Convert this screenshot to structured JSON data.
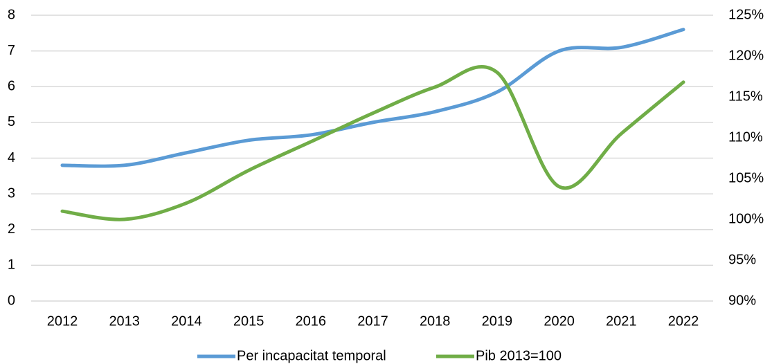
{
  "chart_data": {
    "type": "line",
    "categories": [
      "2012",
      "2013",
      "2014",
      "2015",
      "2016",
      "2017",
      "2018",
      "2019",
      "2020",
      "2021",
      "2022"
    ],
    "series": [
      {
        "name": "Per incapacitat temporal",
        "color": "#5b9bd5",
        "values": [
          3.8,
          3.8,
          4.15,
          4.5,
          4.65,
          5.0,
          5.3,
          5.85,
          7.0,
          7.1,
          7.6
        ]
      },
      {
        "name": "Pib 2013=100",
        "color": "#70ad47",
        "axis": "y2",
        "values": [
          101,
          100,
          102,
          106,
          109.5,
          113,
          116.2,
          118,
          104,
          110.5,
          116.8
        ]
      }
    ],
    "ylim": [
      0,
      8
    ],
    "yticks": [
      0,
      1,
      2,
      3,
      4,
      5,
      6,
      7,
      8
    ],
    "y2lim": [
      90,
      125
    ],
    "y2ticks": [
      {
        "value": 90,
        "label": "90%"
      },
      {
        "value": 95,
        "label": "95%"
      },
      {
        "value": 100,
        "label": "100%"
      },
      {
        "value": 105,
        "label": "105%"
      },
      {
        "value": 110,
        "label": "110%"
      },
      {
        "value": 115,
        "label": "115%"
      },
      {
        "value": 120,
        "label": "120%"
      },
      {
        "value": 125,
        "label": "125%"
      }
    ],
    "grid": true,
    "legend": "bottom"
  }
}
